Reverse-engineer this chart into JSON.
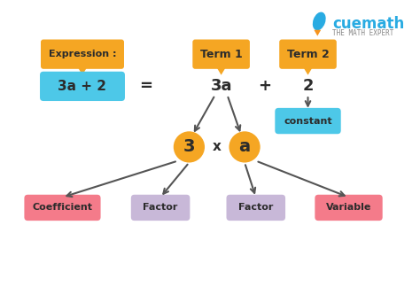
{
  "bg_color": "#ffffff",
  "orange": "#F5A623",
  "orange_dark": "#E8960A",
  "cyan": "#4DC8E8",
  "pink": "#F47B8A",
  "lavender": "#C8B8D8",
  "dark_text": "#2C2C2C",
  "cuemath_blue": "#29ABE2",
  "cuemath_orange": "#F7941D",
  "expression_label": "Expression :",
  "term1_label": "Term 1",
  "term2_label": "Term 2",
  "expr_box": "3a + 2",
  "equal_sign": "=",
  "term1_val": "3a",
  "plus_sign": "+",
  "term2_val": "2",
  "constant_label": "constant",
  "three_label": "3",
  "x_label": "x",
  "a_label": "a",
  "coeff_label": "Coefficient",
  "factor1_label": "Factor",
  "factor2_label": "Factor",
  "variable_label": "Variable",
  "cuemath_text": "cuemath",
  "subtitle_text": "THE MATH EXPERT"
}
